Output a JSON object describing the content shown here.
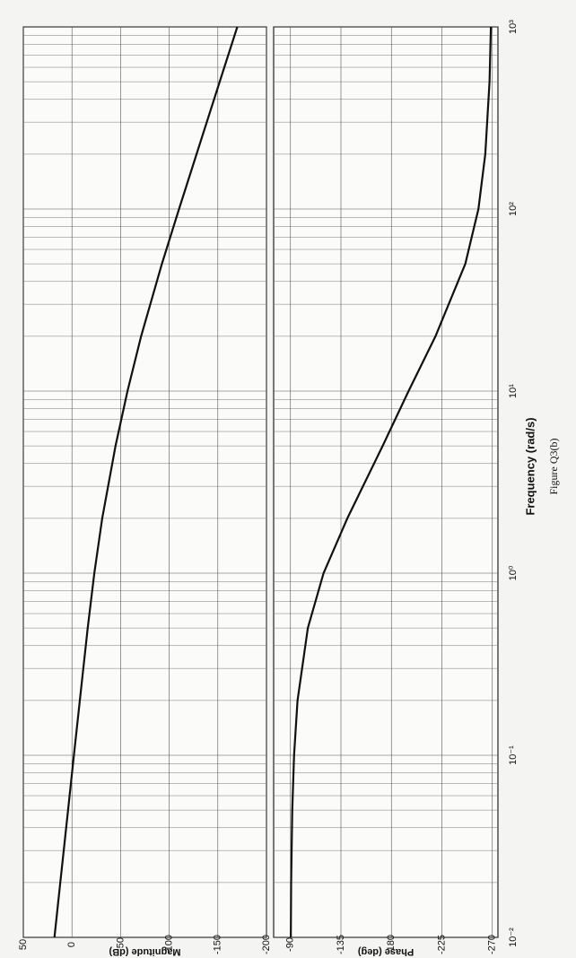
{
  "chart_data": [
    {
      "type": "line",
      "ylabel": "Magnitude (dB)",
      "xscale": "log",
      "grid": true,
      "color": "#111111",
      "x": [
        0.01,
        0.02,
        0.05,
        0.1,
        0.2,
        0.5,
        1,
        2,
        5,
        10,
        20,
        50,
        100,
        200,
        500,
        1000
      ],
      "values": [
        18.0,
        12.0,
        4.0,
        -2.0,
        -8.1,
        -16.2,
        -23.0,
        -31.1,
        -44.8,
        -57.1,
        -71.1,
        -92.5,
        -110.1,
        -128.1,
        -151.9,
        -170.0
      ],
      "xlim": [
        0.01,
        1000
      ],
      "xticks": [
        0.01,
        0.1,
        1,
        10,
        100,
        1000
      ],
      "ylim": [
        -200,
        50
      ],
      "yticks": [
        50,
        0,
        -50,
        -100,
        -150,
        -200
      ]
    },
    {
      "type": "line",
      "ylabel": "Phase (deg)",
      "xlabel": "Frequency  (rad/s)",
      "xscale": "log",
      "grid": true,
      "color": "#111111",
      "x": [
        0.01,
        0.02,
        0.05,
        0.1,
        0.2,
        0.5,
        1,
        2,
        5,
        10,
        20,
        50,
        100,
        200,
        500,
        1000
      ],
      "values": [
        -90.3,
        -90.6,
        -91.6,
        -93.2,
        -96.3,
        -105.5,
        -119.5,
        -140.7,
        -172.2,
        -195.3,
        -219.3,
        -245.9,
        -257.6,
        -263.7,
        -267.5,
        -268.7
      ],
      "xlim": [
        0.01,
        1000
      ],
      "xticks": [
        {
          "value": 0.01,
          "label": "10⁻²"
        },
        {
          "value": 0.1,
          "label": "10⁻¹"
        },
        {
          "value": 1,
          "label": "10⁰"
        },
        {
          "value": 10,
          "label": "10¹"
        },
        {
          "value": 100,
          "label": "10²"
        },
        {
          "value": 1000,
          "label": "10³"
        }
      ],
      "ylim": [
        -275,
        -75
      ],
      "yticks": [
        -90,
        -135,
        -180,
        -225,
        -270
      ]
    }
  ],
  "caption": "Figure Q3(b)"
}
